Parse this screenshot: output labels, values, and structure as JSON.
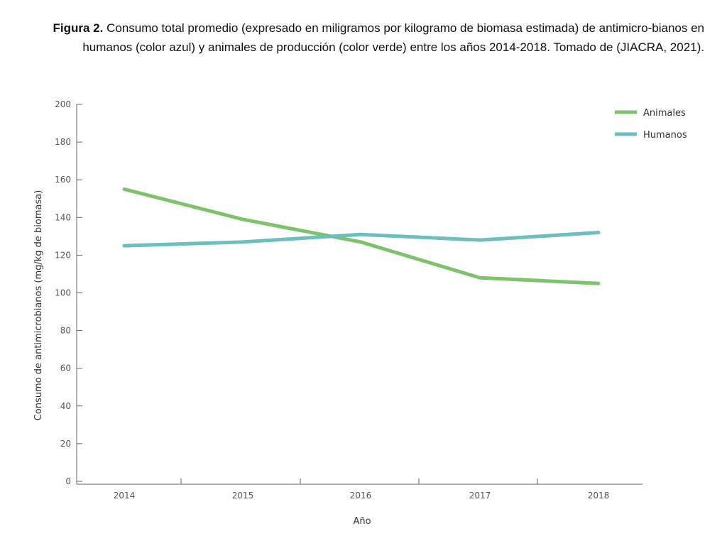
{
  "caption": {
    "label": "Figura 2.",
    "text": " Consumo total promedio (expresado en miligramos por kilogramo de biomasa estimada) de antimicro-bianos en humanos (color azul) y animales de producción (color verde) entre los años 2014-2018. Tomado de (JIACRA, 2021)."
  },
  "chart_data": {
    "type": "line",
    "title": "",
    "xlabel": "Año",
    "ylabel": "Consumo de antimicrobianos (mg/kg de biomasa)",
    "categories": [
      "2014",
      "2015",
      "2016",
      "2017",
      "2018"
    ],
    "ylim": [
      0,
      200
    ],
    "yticks": [
      "0",
      "20",
      "40",
      "60",
      "80",
      "100",
      "120",
      "140",
      "160",
      "180",
      "200"
    ],
    "legend_position": "top-right",
    "grid": false,
    "series": [
      {
        "name": "Animales",
        "color": "#7dc36b",
        "values": [
          155,
          139,
          127,
          108,
          105
        ]
      },
      {
        "name": "Humanos",
        "color": "#6bbfbf",
        "values": [
          125,
          127,
          131,
          128,
          132
        ]
      }
    ]
  }
}
